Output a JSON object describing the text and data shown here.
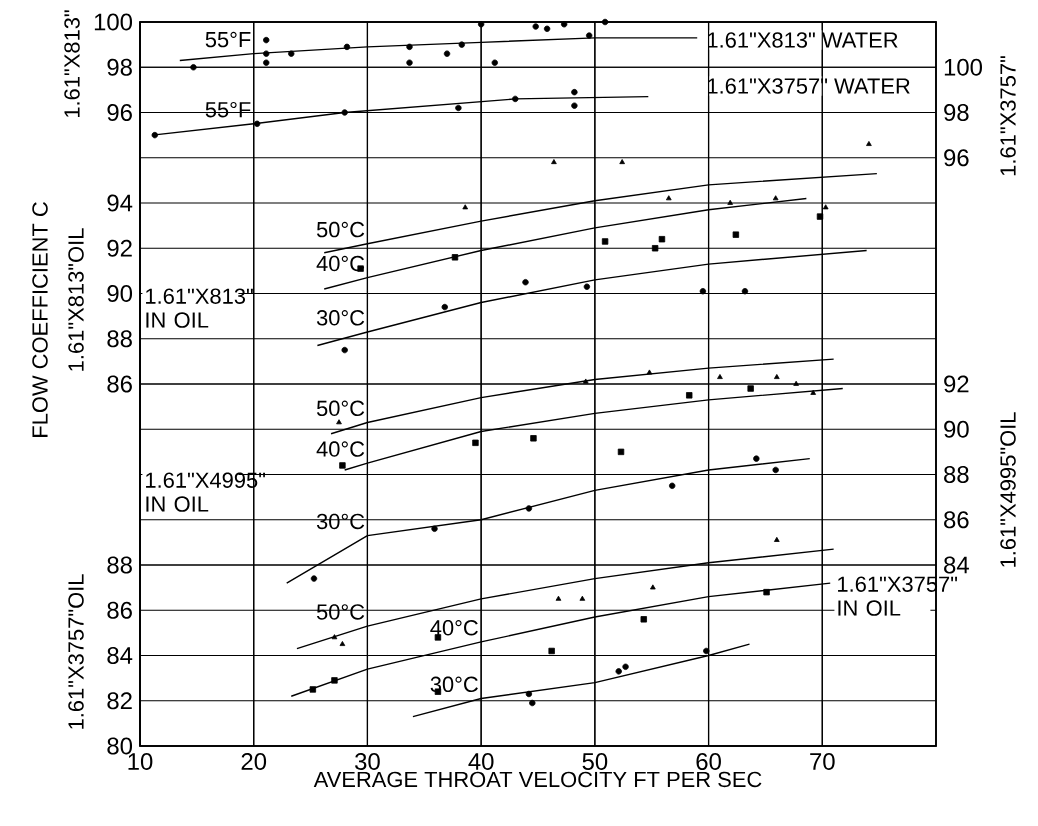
{
  "chart_data": [
    {
      "type": "line",
      "ylabel": "1.61\"X813\"",
      "y2label": "1.61\"X3757\"",
      "xlim": [
        10,
        80
      ],
      "xticks": [
        10,
        20,
        30,
        40,
        50,
        60,
        70
      ],
      "tick_labels": "y",
      "ylim": [
        68,
        100
      ],
      "yticks": [
        96,
        98,
        100
      ],
      "y2lim": [
        70,
        102
      ],
      "y2ticks": [
        96,
        98,
        100
      ],
      "grid": true,
      "annotations": [
        "1.61\"X813\" WATER",
        "1.61\"X3757\" WATER"
      ],
      "series": [
        {
          "name": "55°F",
          "color": "#000000",
          "marker": "none",
          "x": [
            13.5,
            20,
            30,
            40,
            50,
            59
          ],
          "values": [
            98.3,
            98.6,
            98.9,
            99.1,
            99.3,
            99.3
          ]
        },
        {
          "type": "scatter",
          "color": "#000000",
          "marker": "circle",
          "x": [
            14.7,
            21.1,
            21.1,
            21.1,
            23.3,
            28.2,
            33.7,
            33.7,
            37.0,
            38.3,
            40.0,
            41.2,
            44.8,
            45.8,
            47.3,
            49.5,
            50.9
          ],
          "values": [
            98.0,
            99.2,
            98.6,
            98.2,
            98.6,
            98.9,
            98.9,
            98.2,
            98.6,
            99.0,
            99.9,
            98.2,
            99.8,
            99.7,
            99.9,
            99.4,
            100.0
          ]
        },
        {
          "name": "55°F",
          "axis": "y2",
          "color": "#000000",
          "marker": "none",
          "x": [
            11.1,
            20.0,
            28.0,
            43.0,
            54.7
          ],
          "values": [
            97.0,
            97.5,
            98.0,
            98.6,
            98.7
          ]
        },
        {
          "type": "scatter",
          "axis": "y2",
          "color": "#000000",
          "marker": "circle",
          "x": [
            11.3,
            20.3,
            28.0,
            38.0,
            43.0,
            48.2,
            48.2
          ],
          "values": [
            97.0,
            97.5,
            98.0,
            98.2,
            98.6,
            98.9,
            98.3
          ]
        }
      ]
    },
    {
      "type": "line",
      "xlabel": "AVERAGE THROAT VELOCITY FT PER SEC",
      "ylabel": "1.61\"X3757\"OIL",
      "y2label": "1.61\"X4995\"OIL",
      "y3label": "1.61\"X813\"OIL",
      "xlim": [
        10,
        80
      ],
      "xticks": [
        10,
        20,
        30,
        40,
        50,
        60,
        70
      ],
      "ylim": [
        80,
        112
      ],
      "yticks": [
        80,
        82,
        84,
        86,
        88
      ],
      "y2lim": [
        76,
        108
      ],
      "y2ticks": [
        84,
        86,
        88,
        90,
        92
      ],
      "y3lim": [
        70,
        102
      ],
      "y3ticks": [
        86,
        88,
        90,
        92,
        94
      ],
      "grid": true,
      "annotations": [
        "FLOW COEFFICIENT C",
        "1.61\"X813\" IN OIL",
        "1.61\"X4995\" IN OIL",
        "1.61\"X3757\" IN OIL"
      ],
      "series": [
        {
          "name": "50°C",
          "axis": "y3",
          "color": "#000000",
          "marker": "none",
          "x": [
            26.2,
            30,
            40,
            50,
            60,
            74.8
          ],
          "values": [
            91.8,
            92.2,
            93.2,
            94.1,
            94.8,
            95.3
          ]
        },
        {
          "type": "scatter",
          "axis": "y3",
          "color": "#000000",
          "marker": "triangle",
          "x": [
            38.6,
            46.4,
            52.4,
            56.5,
            65.9,
            74.1,
            70.3,
            61.9
          ],
          "values": [
            93.8,
            95.8,
            95.8,
            94.2,
            94.2,
            96.6,
            93.8,
            94.0
          ]
        },
        {
          "name": "40°C",
          "axis": "y3",
          "color": "#000000",
          "marker": "none",
          "x": [
            26.2,
            30,
            40,
            50,
            60,
            68.6
          ],
          "values": [
            90.2,
            90.7,
            91.9,
            92.9,
            93.7,
            94.2
          ]
        },
        {
          "type": "scatter",
          "axis": "y3",
          "color": "#000000",
          "marker": "square",
          "x": [
            29.4,
            37.7,
            50.9,
            55.9,
            55.3,
            62.4,
            69.8
          ],
          "values": [
            91.1,
            91.6,
            92.3,
            92.4,
            92.0,
            92.6,
            93.4
          ]
        },
        {
          "name": "30°C",
          "axis": "y3",
          "color": "#000000",
          "marker": "none",
          "x": [
            25.6,
            30,
            40,
            50,
            60,
            73.9
          ],
          "values": [
            87.7,
            88.3,
            89.6,
            90.6,
            91.3,
            91.9
          ]
        },
        {
          "type": "scatter",
          "axis": "y3",
          "color": "#000000",
          "marker": "circle",
          "x": [
            28.0,
            36.8,
            43.9,
            49.3,
            59.5,
            63.2
          ],
          "values": [
            87.5,
            89.4,
            90.5,
            90.3,
            90.1,
            90.1
          ]
        },
        {
          "name": "50°C",
          "axis": "y2",
          "color": "#000000",
          "marker": "none",
          "x": [
            26.8,
            30,
            40,
            50,
            60,
            71
          ],
          "values": [
            89.8,
            90.3,
            91.4,
            92.2,
            92.7,
            93.1
          ]
        },
        {
          "type": "scatter",
          "axis": "y2",
          "color": "#000000",
          "marker": "triangle",
          "x": [
            27.5,
            49.2,
            54.8,
            61.0,
            66.0,
            67.7,
            69.2
          ],
          "values": [
            90.3,
            92.1,
            92.5,
            92.3,
            92.3,
            92.0,
            91.6
          ]
        },
        {
          "name": "40°C",
          "axis": "y2",
          "color": "#000000",
          "marker": "none",
          "x": [
            28.0,
            30,
            40,
            50,
            60,
            71.8
          ],
          "values": [
            88.2,
            88.5,
            89.9,
            90.7,
            91.3,
            91.8
          ]
        },
        {
          "type": "scatter",
          "axis": "y2",
          "color": "#000000",
          "marker": "square",
          "x": [
            27.8,
            39.5,
            44.6,
            52.3,
            58.3,
            63.7
          ],
          "values": [
            88.4,
            89.4,
            89.6,
            89.0,
            91.5,
            91.8
          ]
        },
        {
          "name": "30°C",
          "axis": "y2",
          "color": "#000000",
          "marker": "none",
          "x": [
            22.9,
            30,
            40,
            50,
            60,
            68.9
          ],
          "values": [
            83.2,
            85.3,
            86.0,
            87.3,
            88.2,
            88.7
          ]
        },
        {
          "type": "scatter",
          "axis": "y2",
          "color": "#000000",
          "marker": "circle",
          "x": [
            25.3,
            35.9,
            44.2,
            56.8,
            64.2,
            65.9
          ],
          "values": [
            83.4,
            85.6,
            86.5,
            87.5,
            88.7,
            88.2
          ]
        },
        {
          "name": "50°C",
          "color": "#000000",
          "marker": "none",
          "x": [
            23.8,
            30,
            40,
            50,
            60,
            71
          ],
          "values": [
            84.3,
            85.3,
            86.5,
            87.4,
            88.1,
            88.7
          ]
        },
        {
          "type": "scatter",
          "color": "#000000",
          "marker": "triangle",
          "x": [
            27.1,
            27.8,
            46.8,
            48.9,
            55.1,
            66.0
          ],
          "values": [
            84.8,
            84.5,
            86.5,
            86.5,
            87.0,
            89.1
          ]
        },
        {
          "name": "40°C",
          "color": "#000000",
          "marker": "none",
          "x": [
            23.3,
            30,
            40,
            50,
            60,
            70.7
          ],
          "values": [
            82.2,
            83.4,
            84.6,
            85.7,
            86.6,
            87.2
          ]
        },
        {
          "type": "scatter",
          "color": "#000000",
          "marker": "square",
          "x": [
            25.2,
            27.1,
            36.2,
            36.2,
            46.2,
            54.3,
            65.1
          ],
          "values": [
            82.5,
            82.9,
            84.8,
            82.4,
            84.2,
            85.6,
            86.8
          ]
        },
        {
          "name": "30°C",
          "color": "#000000",
          "marker": "none",
          "x": [
            34,
            40,
            50,
            60,
            63.6
          ],
          "values": [
            81.3,
            82.1,
            82.8,
            84.0,
            84.5
          ]
        },
        {
          "type": "scatter",
          "color": "#000000",
          "marker": "circle",
          "x": [
            44.2,
            44.5,
            52.1,
            52.7,
            59.8
          ],
          "values": [
            82.3,
            81.9,
            83.3,
            83.5,
            84.2
          ]
        }
      ]
    }
  ]
}
